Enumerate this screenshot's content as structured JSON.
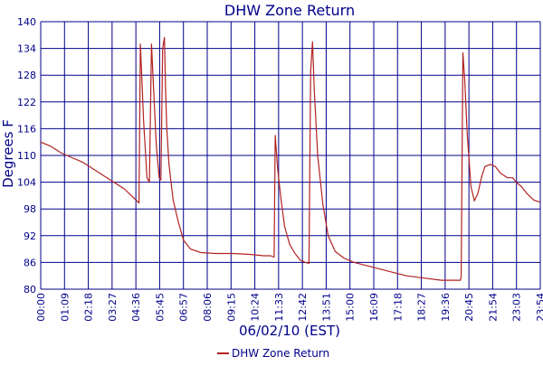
{
  "chart_data": {
    "type": "line",
    "title": "DHW Zone Return",
    "xlabel": "06/02/10 (EST)",
    "ylabel": "Degrees F",
    "x_start_minutes": 0,
    "x_end_minutes": 1434,
    "ylim": [
      80,
      140
    ],
    "y_ticks": [
      80,
      86,
      92,
      98,
      104,
      110,
      116,
      122,
      128,
      134,
      140
    ],
    "x_ticks": [
      "00:00",
      "01:09",
      "02:18",
      "03:27",
      "04:36",
      "05:45",
      "06:57",
      "08:06",
      "09:15",
      "10:24",
      "11:33",
      "12:42",
      "13:51",
      "15:00",
      "16:09",
      "17:18",
      "18:27",
      "19:36",
      "20:45",
      "21:54",
      "23:03",
      "23:54"
    ],
    "grid": true,
    "legend": "bottom-center",
    "colors": {
      "series": "#b22222",
      "grid": "#00008b",
      "text": "#00008b"
    },
    "series": [
      {
        "name": "DHW Zone Return",
        "points": [
          [
            0,
            113.0
          ],
          [
            30,
            112.0
          ],
          [
            60,
            110.5
          ],
          [
            90,
            109.5
          ],
          [
            120,
            108.5
          ],
          [
            150,
            107.0
          ],
          [
            180,
            105.5
          ],
          [
            210,
            104.0
          ],
          [
            240,
            102.5
          ],
          [
            260,
            101.0
          ],
          [
            280,
            99.5
          ],
          [
            282,
            99.3
          ],
          [
            286,
            135.0
          ],
          [
            290,
            128.0
          ],
          [
            295,
            118.0
          ],
          [
            305,
            105.0
          ],
          [
            312,
            104.0
          ],
          [
            318,
            135.0
          ],
          [
            324,
            125.0
          ],
          [
            332,
            112.0
          ],
          [
            340,
            105.0
          ],
          [
            345,
            104.5
          ],
          [
            350,
            134.0
          ],
          [
            355,
            136.5
          ],
          [
            358,
            126.0
          ],
          [
            362,
            116.0
          ],
          [
            368,
            108.0
          ],
          [
            380,
            100.0
          ],
          [
            395,
            95.0
          ],
          [
            410,
            91.0
          ],
          [
            430,
            89.0
          ],
          [
            460,
            88.2
          ],
          [
            500,
            88.0
          ],
          [
            550,
            88.0
          ],
          [
            600,
            87.8
          ],
          [
            640,
            87.5
          ],
          [
            660,
            87.5
          ],
          [
            670,
            87.2
          ],
          [
            673,
            114.5
          ],
          [
            680,
            107.0
          ],
          [
            690,
            100.0
          ],
          [
            700,
            94.0
          ],
          [
            715,
            90.0
          ],
          [
            730,
            88.0
          ],
          [
            745,
            86.5
          ],
          [
            760,
            86.0
          ],
          [
            770,
            85.8
          ],
          [
            775,
            129.0
          ],
          [
            780,
            135.5
          ],
          [
            785,
            125.0
          ],
          [
            795,
            110.0
          ],
          [
            810,
            99.0
          ],
          [
            825,
            92.0
          ],
          [
            845,
            88.5
          ],
          [
            870,
            87.0
          ],
          [
            900,
            86.0
          ],
          [
            950,
            85.0
          ],
          [
            1000,
            84.0
          ],
          [
            1050,
            83.0
          ],
          [
            1100,
            82.5
          ],
          [
            1150,
            82.0
          ],
          [
            1185,
            82.0
          ],
          [
            1205,
            82.0
          ],
          [
            1207,
            83.0
          ],
          [
            1212,
            133.0
          ],
          [
            1217,
            127.0
          ],
          [
            1224,
            115.0
          ],
          [
            1235,
            103.0
          ],
          [
            1245,
            99.8
          ],
          [
            1255,
            101.5
          ],
          [
            1265,
            105.0
          ],
          [
            1275,
            107.5
          ],
          [
            1290,
            108.0
          ],
          [
            1305,
            107.5
          ],
          [
            1320,
            106.0
          ],
          [
            1340,
            105.0
          ],
          [
            1355,
            105.0
          ],
          [
            1365,
            104.0
          ],
          [
            1380,
            103.0
          ],
          [
            1395,
            101.5
          ],
          [
            1415,
            100.0
          ],
          [
            1434,
            99.5
          ]
        ]
      }
    ]
  }
}
